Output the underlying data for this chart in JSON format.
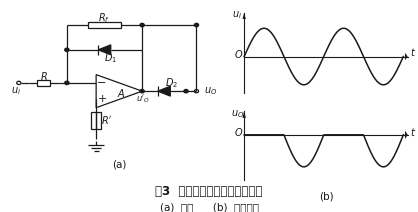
{
  "fig_width": 4.18,
  "fig_height": 2.12,
  "dpi": 100,
  "bg_color": "#ffffff",
  "line_color": "#1a1a1a",
  "title_text": "图3  半波粿密整流电路及其波形",
  "subtitle_text": "(a)  电路      (b)  波形分析"
}
